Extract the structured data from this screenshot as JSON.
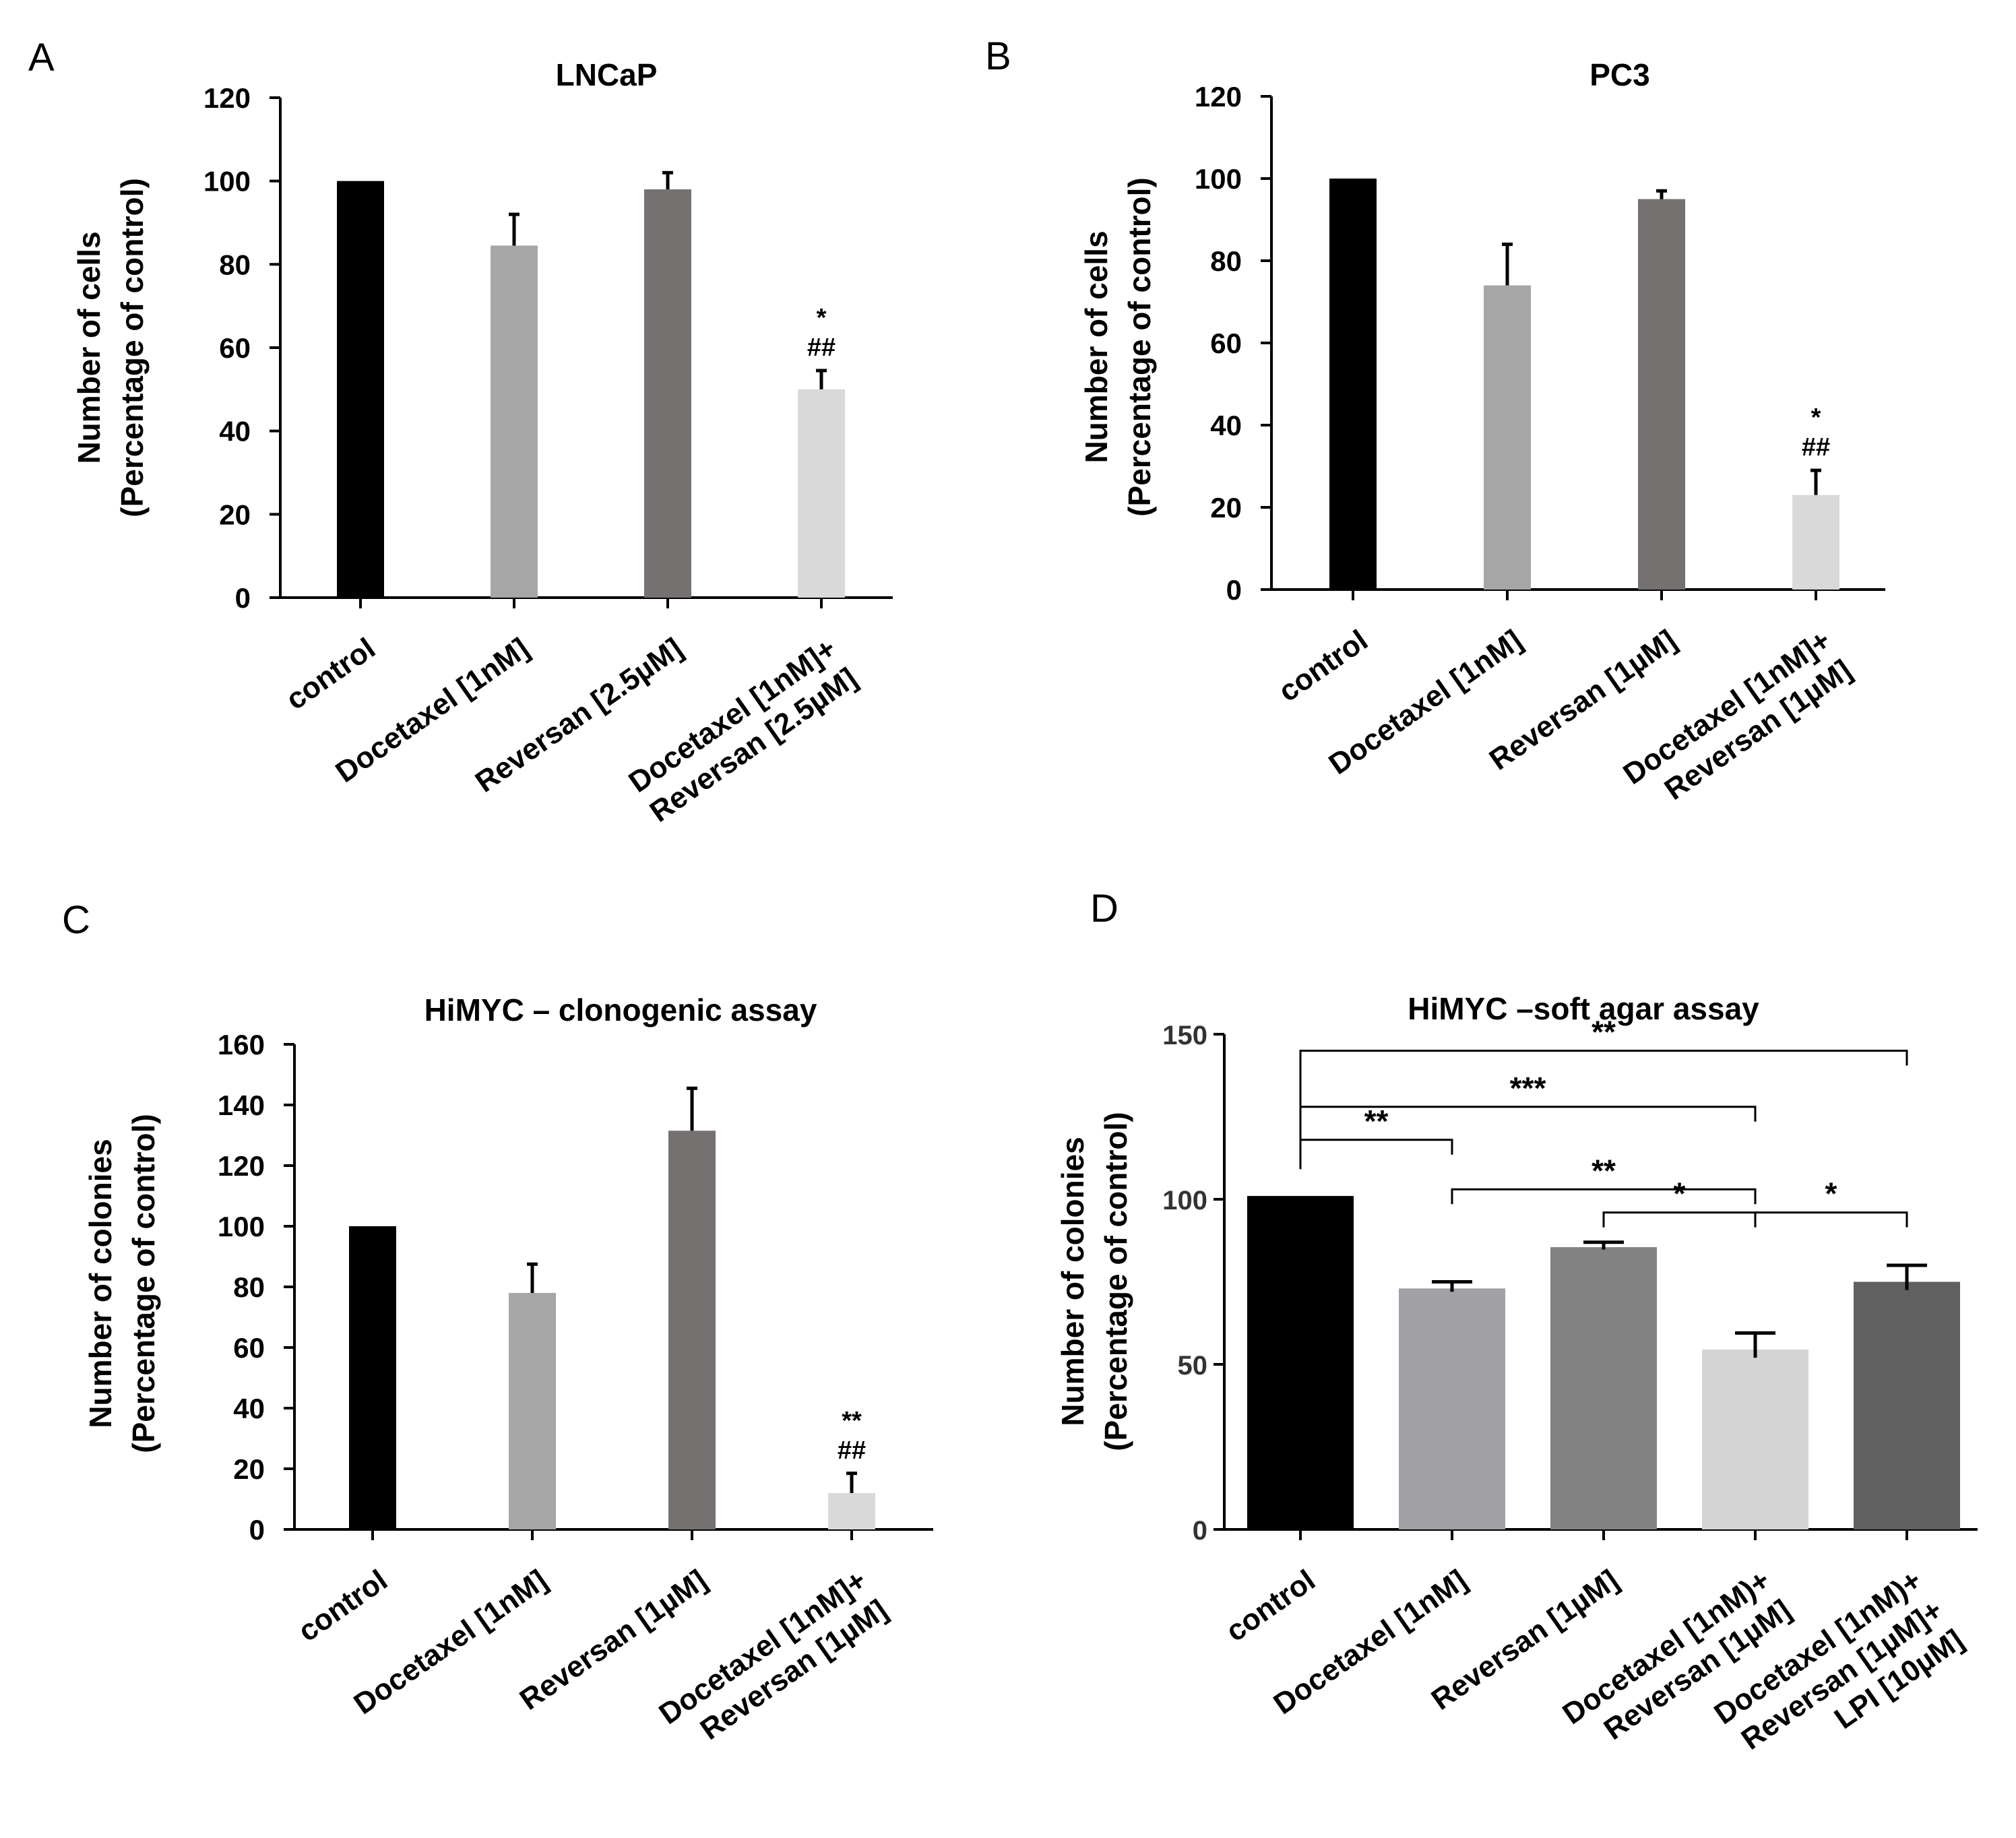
{
  "panels": [
    {
      "letter": "A",
      "chart_data": {
        "type": "bar",
        "title": "LNCaP",
        "ylabel_line1": "Number of cells",
        "ylabel_line2": "(Percentage of control)",
        "xlabel": "",
        "ylim": [
          0,
          120
        ],
        "yticks": [
          0,
          20,
          40,
          60,
          80,
          100,
          120
        ],
        "categories": [
          [
            "control"
          ],
          [
            "Docetaxel  [1nM]"
          ],
          [
            "Reversan  [2.5µM]"
          ],
          [
            "Docetaxel  [1nM]+",
            "Reversan  [2.5µM]"
          ]
        ],
        "values": [
          100,
          84.5,
          98,
          50
        ],
        "errors": [
          0,
          7.5,
          4,
          4.5
        ],
        "colors": [
          "#000000",
          "#a6a6a6",
          "#757171",
          "#d9d9d9"
        ],
        "significance": [
          [],
          [],
          [],
          [
            "*",
            "##"
          ]
        ]
      }
    },
    {
      "letter": "B",
      "chart_data": {
        "type": "bar",
        "title": "PC3",
        "ylabel_line1": "Number of cells",
        "ylabel_line2": "(Percentage of control)",
        "xlabel": "",
        "ylim": [
          0,
          120
        ],
        "yticks": [
          0,
          20,
          40,
          60,
          80,
          100,
          120
        ],
        "categories": [
          [
            "control"
          ],
          [
            "Docetaxel  [1nM]"
          ],
          [
            "Reversan  [1µM]"
          ],
          [
            "Docetaxel  [1nM]+",
            "Reversan  [1µM]"
          ]
        ],
        "values": [
          100,
          74,
          95,
          23
        ],
        "errors": [
          0,
          10,
          2,
          6
        ],
        "colors": [
          "#000000",
          "#a6a6a6",
          "#757171",
          "#d9d9d9"
        ],
        "significance": [
          [],
          [],
          [],
          [
            "*",
            "##"
          ]
        ]
      }
    },
    {
      "letter": "C",
      "chart_data": {
        "type": "bar",
        "title": "HiMYC – clonogenic assay",
        "ylabel_line1": "Number of colonies",
        "ylabel_line2": "(Percentage of control)",
        "xlabel": "",
        "ylim": [
          0,
          160
        ],
        "yticks": [
          0,
          20,
          40,
          60,
          80,
          100,
          120,
          140,
          160
        ],
        "categories": [
          [
            "control"
          ],
          [
            "Docetaxel  [1nM]"
          ],
          [
            "Reversan  [1µM]"
          ],
          [
            "Docetaxel  [1nM]+",
            "Reversan  [1µM]"
          ]
        ],
        "values": [
          100,
          78,
          131.5,
          12
        ],
        "errors": [
          0,
          9.5,
          14,
          6.5
        ],
        "colors": [
          "#000000",
          "#a6a6a6",
          "#757171",
          "#d9d9d9"
        ],
        "significance": [
          [],
          [],
          [],
          [
            "**",
            "##"
          ]
        ]
      }
    },
    {
      "letter": "D",
      "chart_data": {
        "type": "bar",
        "title": "HiMYC –soft agar assay",
        "ylabel_line1": "Number of colonies",
        "ylabel_line2": "(Percentage of control)",
        "xlabel": "",
        "ylim": [
          0,
          150
        ],
        "yticks": [
          0,
          50,
          100,
          150
        ],
        "categories": [
          [
            "control"
          ],
          [
            "Docetaxel  [1nM]"
          ],
          [
            "Reversan  [1µM]"
          ],
          [
            "Docetaxel  [1nM)+",
            "Reversan  [1µM]"
          ],
          [
            "Docetaxel  [1nM)+",
            "Reversan  [1µM]+",
            "LPI  [10µM]"
          ]
        ],
        "values": [
          101,
          73,
          85.5,
          54.5,
          75
        ],
        "errors": [
          0,
          2,
          1.5,
          5,
          5
        ],
        "colors": [
          "#000000",
          "#a1a1a5",
          "#828282",
          "#d4d4d4",
          "#606060"
        ],
        "brackets": [
          {
            "from": 0,
            "to": 4,
            "level": 145,
            "label": "**"
          },
          {
            "from": 0,
            "to": 3,
            "level": 128,
            "label": "***"
          },
          {
            "from": 0,
            "to": 1,
            "level": 118,
            "label": "**"
          },
          {
            "from": 1,
            "to": 3,
            "level": 103,
            "label": "**"
          },
          {
            "from": 2,
            "to": 3,
            "level": 96,
            "label": "*"
          },
          {
            "from": 3,
            "to": 4,
            "level": 96,
            "label": "*"
          }
        ]
      }
    }
  ]
}
